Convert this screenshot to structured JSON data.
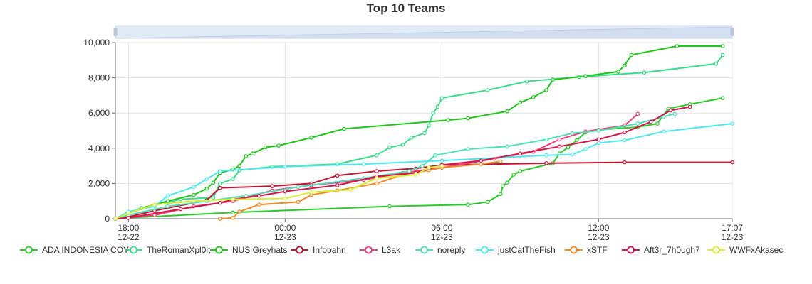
{
  "chart_data": {
    "type": "line",
    "title": "Top 10 Teams",
    "xlabel": "",
    "ylabel": "",
    "x_axis": {
      "type": "time",
      "range": [
        "12-22 17:30",
        "12-23 17:07"
      ],
      "ticks": [
        {
          "t": "12-22 18:00",
          "time": "18:00",
          "date": "12-22"
        },
        {
          "t": "12-23 00:00",
          "time": "00:00",
          "date": "12-23"
        },
        {
          "t": "12-23 06:00",
          "time": "06:00",
          "date": "12-23"
        },
        {
          "t": "12-23 12:00",
          "time": "12:00",
          "date": "12-23"
        },
        {
          "t": "12-23 17:07",
          "time": "17:07",
          "date": "12-23"
        }
      ]
    },
    "y_axis": {
      "ylim": [
        0,
        10000
      ],
      "ticks": [
        0,
        2000,
        4000,
        6000,
        8000,
        10000
      ],
      "tick_labels": [
        "0",
        "2,000",
        "4,000",
        "6,000",
        "8,000",
        "10,000"
      ]
    },
    "grid": true,
    "datazoom_slider": true,
    "legend_position": "bottom",
    "series": [
      {
        "name": "ADA INDONESIA COY",
        "color": "#2ec82e",
        "points": [
          [
            "12-22 17:30",
            0
          ],
          [
            "12-22 18:00",
            50
          ],
          [
            "12-22 22:00",
            350
          ],
          [
            "12-23 04:00",
            700
          ],
          [
            "12-23 07:00",
            800
          ],
          [
            "12-23 07:45",
            950
          ],
          [
            "12-23 08:15",
            1400
          ],
          [
            "12-23 08:20",
            1850
          ],
          [
            "12-23 08:30",
            2050
          ],
          [
            "12-23 08:45",
            2500
          ],
          [
            "12-23 09:00",
            2700
          ],
          [
            "12-23 10:15",
            3150
          ],
          [
            "12-23 10:30",
            3700
          ],
          [
            "12-23 10:50",
            4050
          ],
          [
            "12-23 11:10",
            4450
          ],
          [
            "12-23 11:30",
            4900
          ],
          [
            "12-23 12:00",
            5050
          ],
          [
            "12-23 13:30",
            5200
          ],
          [
            "12-23 14:15",
            5400
          ],
          [
            "12-23 14:40",
            6250
          ],
          [
            "12-23 15:30",
            6500
          ],
          [
            "12-23 16:45",
            6850
          ]
        ]
      },
      {
        "name": "TheRomanXpl0it",
        "color": "#3cdb8c",
        "points": [
          [
            "12-22 17:30",
            0
          ],
          [
            "12-22 18:30",
            600
          ],
          [
            "12-22 20:00",
            1100
          ],
          [
            "12-22 21:15",
            1200
          ],
          [
            "12-22 21:30",
            2000
          ],
          [
            "12-22 22:00",
            2250
          ],
          [
            "12-22 22:15",
            2750
          ],
          [
            "12-22 23:30",
            2950
          ],
          [
            "12-23 02:00",
            3100
          ],
          [
            "12-23 03:30",
            3600
          ],
          [
            "12-23 04:00",
            4050
          ],
          [
            "12-23 04:30",
            4200
          ],
          [
            "12-23 04:50",
            4600
          ],
          [
            "12-23 05:20",
            4850
          ],
          [
            "12-23 05:30",
            5300
          ],
          [
            "12-23 05:40",
            6000
          ],
          [
            "12-23 05:50",
            6350
          ],
          [
            "12-23 06:00",
            6850
          ],
          [
            "12-23 07:45",
            7300
          ],
          [
            "12-23 09:15",
            7800
          ],
          [
            "12-23 11:15",
            8050
          ],
          [
            "12-23 13:45",
            8300
          ],
          [
            "12-23 16:30",
            8800
          ],
          [
            "12-23 16:45",
            9300
          ]
        ]
      },
      {
        "name": "NUS Greyhats",
        "color": "#22c41e",
        "points": [
          [
            "12-22 17:30",
            0
          ],
          [
            "12-22 18:00",
            300
          ],
          [
            "12-22 18:30",
            600
          ],
          [
            "12-22 19:30",
            1000
          ],
          [
            "12-22 20:30",
            1350
          ],
          [
            "12-22 21:00",
            1700
          ],
          [
            "12-22 21:15",
            2050
          ],
          [
            "12-22 21:30",
            2600
          ],
          [
            "12-22 22:00",
            2800
          ],
          [
            "12-22 22:15",
            3000
          ],
          [
            "12-22 22:30",
            3550
          ],
          [
            "12-22 22:45",
            3700
          ],
          [
            "12-22 23:15",
            4050
          ],
          [
            "12-22 23:45",
            4150
          ],
          [
            "12-23 01:00",
            4600
          ],
          [
            "12-23 02:15",
            5100
          ],
          [
            "12-23 06:15",
            5600
          ],
          [
            "12-23 07:00",
            5700
          ],
          [
            "12-23 08:30",
            6100
          ],
          [
            "12-23 09:00",
            6600
          ],
          [
            "12-23 09:30",
            6900
          ],
          [
            "12-23 10:00",
            7300
          ],
          [
            "12-23 10:15",
            7900
          ],
          [
            "12-23 11:30",
            8100
          ],
          [
            "12-23 12:45",
            8350
          ],
          [
            "12-23 13:00",
            8700
          ],
          [
            "12-23 13:15",
            9300
          ],
          [
            "12-23 15:00",
            9800
          ],
          [
            "12-23 16:45",
            9800
          ]
        ]
      },
      {
        "name": "Infobahn",
        "color": "#c21532",
        "points": [
          [
            "12-22 17:30",
            0
          ],
          [
            "12-22 18:00",
            100
          ],
          [
            "12-22 19:00",
            450
          ],
          [
            "12-22 21:00",
            1050
          ],
          [
            "12-22 21:30",
            1750
          ],
          [
            "12-22 23:30",
            1850
          ],
          [
            "12-23 01:00",
            2000
          ],
          [
            "12-23 02:00",
            2450
          ],
          [
            "12-23 03:30",
            2700
          ],
          [
            "12-23 05:00",
            2850
          ],
          [
            "12-23 06:00",
            3050
          ],
          [
            "12-23 10:00",
            3150
          ],
          [
            "12-23 13:00",
            3200
          ],
          [
            "12-23 17:07",
            3200
          ]
        ]
      },
      {
        "name": "L3ak",
        "color": "#f0407a",
        "points": [
          [
            "12-22 17:30",
            0
          ],
          [
            "12-22 19:00",
            200
          ],
          [
            "12-22 20:30",
            700
          ],
          [
            "12-22 22:00",
            1000
          ],
          [
            "12-22 23:30",
            1600
          ],
          [
            "12-23 01:00",
            1900
          ],
          [
            "12-23 03:00",
            2200
          ],
          [
            "12-23 04:30",
            2600
          ],
          [
            "12-23 06:00",
            2900
          ],
          [
            "12-23 08:00",
            3400
          ],
          [
            "12-23 09:30",
            3800
          ],
          [
            "12-23 10:30",
            4500
          ],
          [
            "12-23 11:30",
            4950
          ],
          [
            "12-23 13:00",
            5300
          ],
          [
            "12-23 13:30",
            5950
          ]
        ]
      },
      {
        "name": "noreply",
        "color": "#4de0b8",
        "points": [
          [
            "12-22 17:30",
            0
          ],
          [
            "12-22 18:00",
            200
          ],
          [
            "12-22 19:30",
            700
          ],
          [
            "12-22 21:00",
            1000
          ],
          [
            "12-22 22:30",
            1300
          ],
          [
            "12-23 00:30",
            1800
          ],
          [
            "12-23 03:00",
            2300
          ],
          [
            "12-23 04:45",
            2700
          ],
          [
            "12-23 05:15",
            3000
          ],
          [
            "12-23 05:45",
            3600
          ],
          [
            "12-23 07:00",
            3950
          ],
          [
            "12-23 08:30",
            4100
          ],
          [
            "12-23 10:00",
            4500
          ],
          [
            "12-23 11:00",
            4850
          ],
          [
            "12-23 12:00",
            5000
          ],
          [
            "12-23 13:30",
            5400
          ],
          [
            "12-23 14:30",
            5800
          ],
          [
            "12-23 14:55",
            5950
          ]
        ]
      },
      {
        "name": "justCatTheFish",
        "color": "#4fe8f0",
        "points": [
          [
            "12-22 17:30",
            0
          ],
          [
            "12-22 18:00",
            400
          ],
          [
            "12-22 19:00",
            700
          ],
          [
            "12-22 19:30",
            1300
          ],
          [
            "12-22 20:30",
            1800
          ],
          [
            "12-22 21:00",
            2250
          ],
          [
            "12-22 21:30",
            2700
          ],
          [
            "12-23 00:00",
            2950
          ],
          [
            "12-23 03:00",
            3100
          ],
          [
            "12-23 06:00",
            3300
          ],
          [
            "12-23 10:00",
            3600
          ],
          [
            "12-23 11:00",
            3650
          ],
          [
            "12-23 11:30",
            3950
          ],
          [
            "12-23 12:00",
            4300
          ],
          [
            "12-23 13:00",
            4450
          ],
          [
            "12-23 14:30",
            4950
          ],
          [
            "12-23 17:07",
            5400
          ]
        ]
      },
      {
        "name": "xSTF",
        "color": "#f08a24",
        "points": [
          [
            "12-22 21:30",
            0
          ],
          [
            "12-22 22:00",
            50
          ],
          [
            "12-22 22:15",
            400
          ],
          [
            "12-22 23:00",
            800
          ],
          [
            "12-23 00:30",
            950
          ],
          [
            "12-23 01:00",
            1350
          ],
          [
            "12-23 02:00",
            1600
          ],
          [
            "12-23 03:30",
            2000
          ],
          [
            "12-23 04:30",
            2500
          ],
          [
            "12-23 05:30",
            2750
          ],
          [
            "12-23 06:00",
            2900
          ],
          [
            "12-23 07:30",
            3100
          ],
          [
            "12-23 08:15",
            3250
          ]
        ]
      },
      {
        "name": "Aft3r_7h0ugh7",
        "color": "#d3174a",
        "points": [
          [
            "12-22 17:30",
            0
          ],
          [
            "12-22 18:00",
            50
          ],
          [
            "12-22 20:00",
            550
          ],
          [
            "12-22 21:30",
            900
          ],
          [
            "12-22 22:00",
            1100
          ],
          [
            "12-22 23:00",
            1300
          ],
          [
            "12-23 00:00",
            1550
          ],
          [
            "12-23 02:00",
            1900
          ],
          [
            "12-23 03:30",
            2400
          ],
          [
            "12-23 05:00",
            2600
          ],
          [
            "12-23 06:00",
            3050
          ],
          [
            "12-23 07:30",
            3300
          ],
          [
            "12-23 09:00",
            3700
          ],
          [
            "12-23 10:30",
            4100
          ],
          [
            "12-23 12:00",
            4500
          ],
          [
            "12-23 13:00",
            4900
          ],
          [
            "12-23 14:00",
            5500
          ],
          [
            "12-23 14:45",
            6150
          ],
          [
            "12-23 15:30",
            6350
          ]
        ]
      },
      {
        "name": "WWFxAkasec",
        "color": "#d8ee35",
        "points": [
          [
            "12-22 17:30",
            0
          ],
          [
            "12-22 18:00",
            300
          ],
          [
            "12-22 19:00",
            800
          ],
          [
            "12-22 20:30",
            1000
          ],
          [
            "12-22 22:00",
            1100
          ],
          [
            "12-23 00:00",
            1150
          ],
          [
            "12-23 01:00",
            1500
          ],
          [
            "12-23 02:30",
            1650
          ],
          [
            "12-23 03:30",
            2300
          ],
          [
            "12-23 05:00",
            2500
          ],
          [
            "12-23 05:30",
            2900
          ],
          [
            "12-23 06:00",
            3000
          ]
        ]
      }
    ]
  }
}
